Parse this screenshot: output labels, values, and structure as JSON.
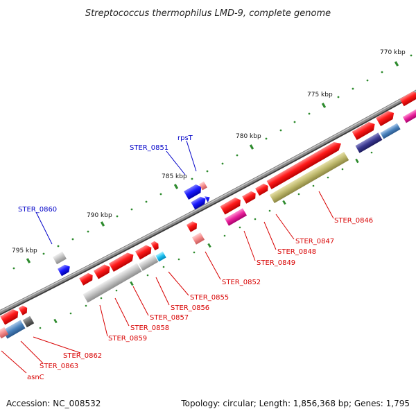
{
  "title": "Streptococcus thermophilus LMD-9, complete genome",
  "footer": {
    "accession": "Accession: NC_008532",
    "topology": "Topology: circular; Length: 1,856,368 bp; Genes: 1,795"
  },
  "scale_labels": [
    "770 kbp",
    "775 kbp",
    "780 kbp",
    "785 kbp",
    "790 kbp",
    "795 kbp"
  ],
  "gene_labels": {
    "blue": [
      "rpsT",
      "STER_0851",
      "STER_0860"
    ],
    "red": [
      "STER_0846",
      "STER_0847",
      "STER_0848",
      "STER_0849",
      "STER_0852",
      "STER_0855",
      "STER_0856",
      "STER_0857",
      "STER_0858",
      "STER_0859",
      "STER_0862",
      "STER_0863",
      "asnC"
    ]
  },
  "colors": {
    "backbone": "#6e6e6e",
    "tick": "#2e8b2e",
    "red_gene": "#ff1a1a",
    "blue_gene": "#1a1aff",
    "label_blue": "#0000c8",
    "label_red": "#d80000"
  }
}
